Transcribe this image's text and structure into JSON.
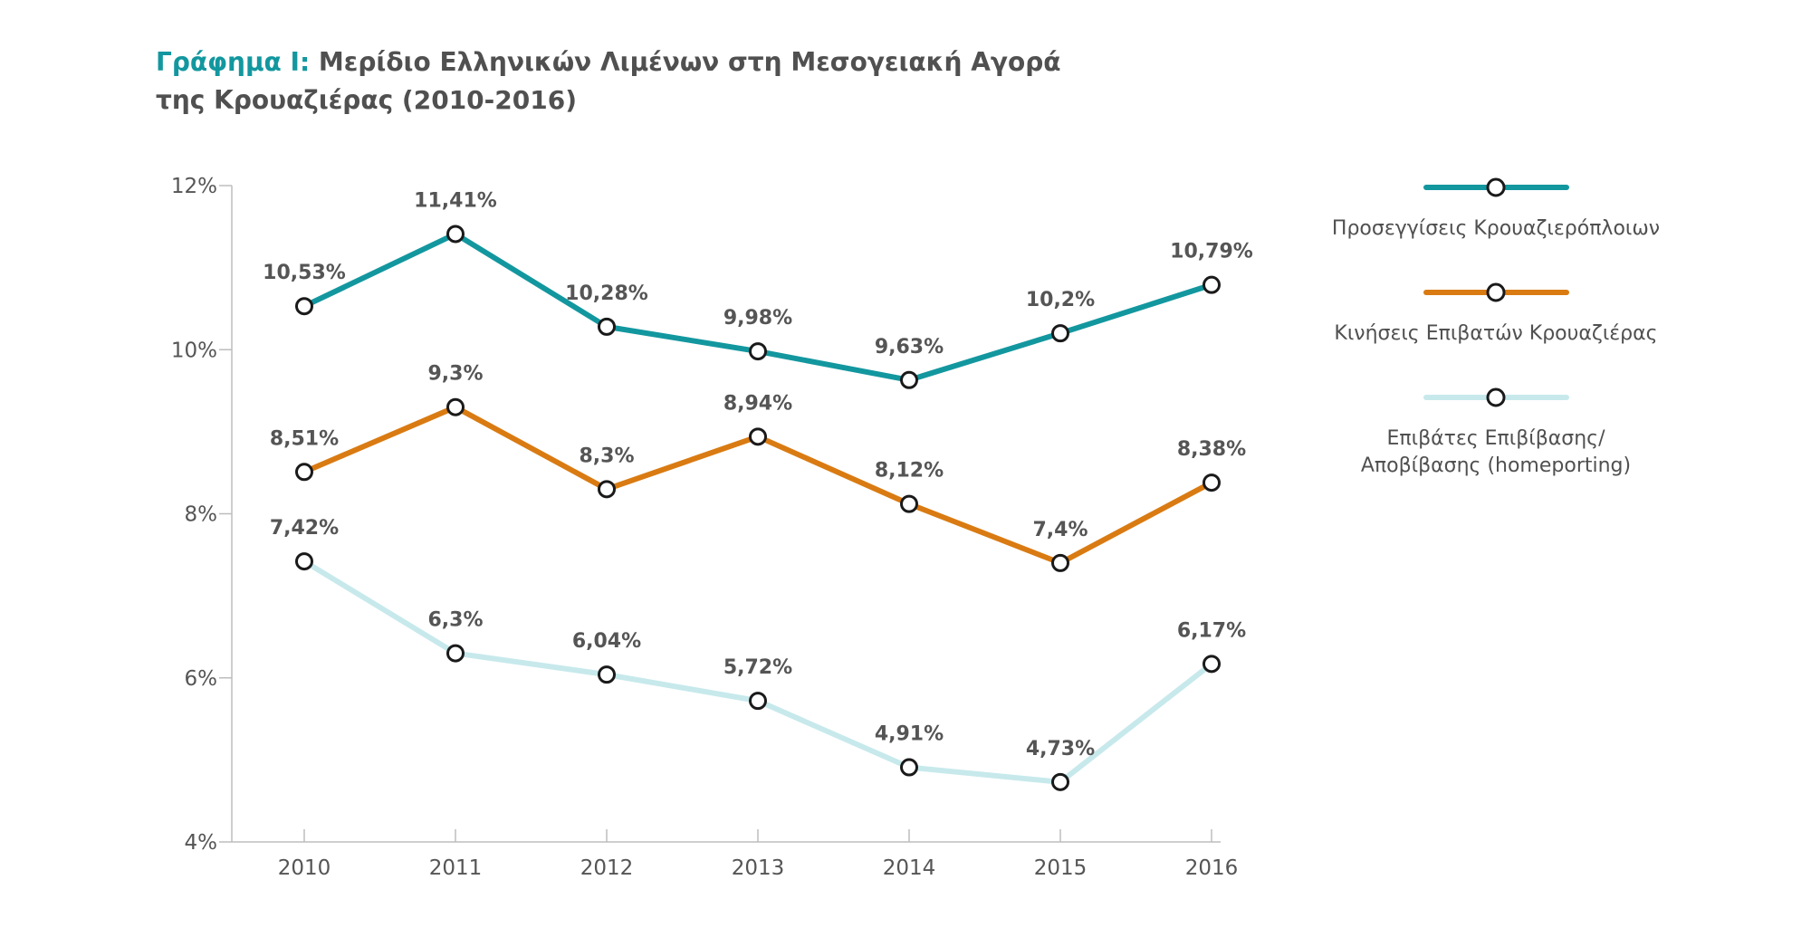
{
  "title": {
    "prefix": "Γράφημα Ι:",
    "line1": "Μερίδιο Ελληνικών Λιμένων στη Μεσογειακή Αγορά",
    "line2": "της Κρουαζιέρας (2010-2016)"
  },
  "chart_data": {
    "type": "line",
    "x": [
      "2010",
      "2011",
      "2012",
      "2013",
      "2014",
      "2015",
      "2016"
    ],
    "ylim": [
      4,
      12
    ],
    "yticks": [
      {
        "value": 4,
        "label": "4%"
      },
      {
        "value": 6,
        "label": "6%"
      },
      {
        "value": 8,
        "label": "8%"
      },
      {
        "value": 10,
        "label": "10%"
      },
      {
        "value": 12,
        "label": "12%"
      }
    ],
    "legend_position": "right",
    "grid": false,
    "series": [
      {
        "name": "Προσεγγίσεις Κρουαζιερόπλοιων",
        "legend_lines": [
          "Προσεγγίσεις Κρουαζιερόπλοιων"
        ],
        "color": "#13979f",
        "values": [
          10.53,
          11.41,
          10.28,
          9.98,
          9.63,
          10.2,
          10.79
        ],
        "labels": [
          "10,53%",
          "11,41%",
          "10,28%",
          "9,98%",
          "9,63%",
          "10,2%",
          "10,79%"
        ]
      },
      {
        "name": "Κινήσεις Επιβατών Κρουαζιέρας",
        "legend_lines": [
          "Κινήσεις Επιβατών Κρουαζιέρας"
        ],
        "color": "#d97b12",
        "values": [
          8.51,
          9.3,
          8.3,
          8.94,
          8.12,
          7.4,
          8.38
        ],
        "labels": [
          "8,51%",
          "9,3%",
          "8,3%",
          "8,94%",
          "8,12%",
          "7,4%",
          "8,38%"
        ]
      },
      {
        "name": "Επιβάτες Επιβίβασης/ Αποβίβασης (homeporting)",
        "legend_lines": [
          "Επιβάτες Επιβίβασης/",
          "Αποβίβασης (homeporting)"
        ],
        "color": "#c7e9ec",
        "values": [
          7.42,
          6.3,
          6.04,
          5.72,
          4.91,
          4.73,
          6.17
        ],
        "labels": [
          "7,42%",
          "6,3%",
          "6,04%",
          "5,72%",
          "4,91%",
          "4,73%",
          "6,17%"
        ]
      }
    ]
  }
}
